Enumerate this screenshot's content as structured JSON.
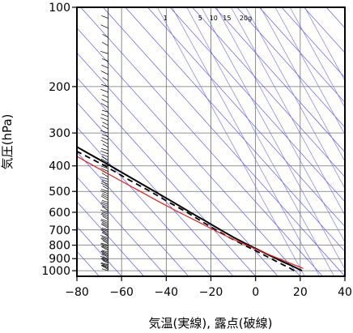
{
  "chart_data": {
    "type": "line",
    "chart_kind": "skew-T log-P diagram",
    "xlabel": "気温(実線), 露点(破線)",
    "ylabel": "気圧(hPa)",
    "x_ticks": [
      -80,
      -60,
      -40,
      -20,
      0,
      20,
      40
    ],
    "y_ticks": [
      100,
      200,
      300,
      400,
      500,
      600,
      700,
      800,
      900,
      1000
    ],
    "xlim": [
      -80,
      40
    ],
    "ylim": [
      1050,
      100
    ],
    "y_scale": "log",
    "grid": true,
    "background_lines": {
      "color_dry_adiabats": "#4646ff",
      "color_mixing_ratio": "#6a6af0",
      "color_isotherm_grid": "#707070",
      "mixing_ratio_labels": [
        "1",
        "5",
        "10",
        "15",
        "20g"
      ]
    },
    "series": [
      {
        "line_style": "solid",
        "color": "#000000",
        "points": [
          [
            1000,
            23
          ],
          [
            975,
            21.5
          ],
          [
            950,
            20
          ],
          [
            925,
            18
          ],
          [
            900,
            16.5
          ],
          [
            850,
            13
          ],
          [
            800,
            9.5
          ],
          [
            750,
            6
          ],
          [
            700,
            3
          ],
          [
            650,
            0
          ],
          [
            600,
            -3.5
          ],
          [
            550,
            -7
          ],
          [
            500,
            -11
          ],
          [
            450,
            -15.5
          ],
          [
            400,
            -20.5
          ],
          [
            350,
            -26.5
          ],
          [
            300,
            -33
          ],
          [
            250,
            -42
          ],
          [
            200,
            -53
          ],
          [
            175,
            -59
          ],
          [
            150,
            -66
          ],
          [
            125,
            -72
          ],
          [
            110,
            -75
          ],
          [
            100,
            -77
          ]
        ]
      },
      {
        "line_style": "dashed",
        "color": "#000000",
        "points": [
          [
            1000,
            19.5
          ],
          [
            975,
            18.5
          ],
          [
            950,
            17
          ],
          [
            925,
            15.5
          ],
          [
            900,
            14
          ],
          [
            850,
            11
          ],
          [
            800,
            7.5
          ],
          [
            750,
            4
          ],
          [
            700,
            1
          ],
          [
            650,
            -2
          ],
          [
            600,
            -5
          ],
          [
            550,
            -9
          ],
          [
            500,
            -13
          ],
          [
            450,
            -18
          ],
          [
            400,
            -23
          ],
          [
            350,
            -30
          ],
          [
            300,
            -38
          ],
          [
            270,
            -44
          ],
          [
            250,
            -49
          ],
          [
            236,
            -53
          ],
          [
            236,
            -79
          ]
        ]
      },
      {
        "line_style": "solid",
        "color": "#e02020",
        "points": [
          [
            980,
            24.5
          ],
          [
            950,
            22
          ],
          [
            900,
            17.5
          ],
          [
            850,
            13
          ],
          [
            800,
            8.5
          ],
          [
            750,
            4
          ],
          [
            700,
            0
          ],
          [
            650,
            -4
          ],
          [
            600,
            -8.5
          ],
          [
            550,
            -13
          ],
          [
            500,
            -17.5
          ],
          [
            450,
            -22.5
          ],
          [
            400,
            -28
          ],
          [
            350,
            -34
          ],
          [
            300,
            -41
          ],
          [
            250,
            -50
          ],
          [
            200,
            -60
          ],
          [
            150,
            -70
          ],
          [
            130,
            -75
          ],
          [
            118,
            -78
          ]
        ]
      }
    ],
    "wind_barbs": {
      "color": "#000000",
      "x_position_temperature": -66
    }
  }
}
